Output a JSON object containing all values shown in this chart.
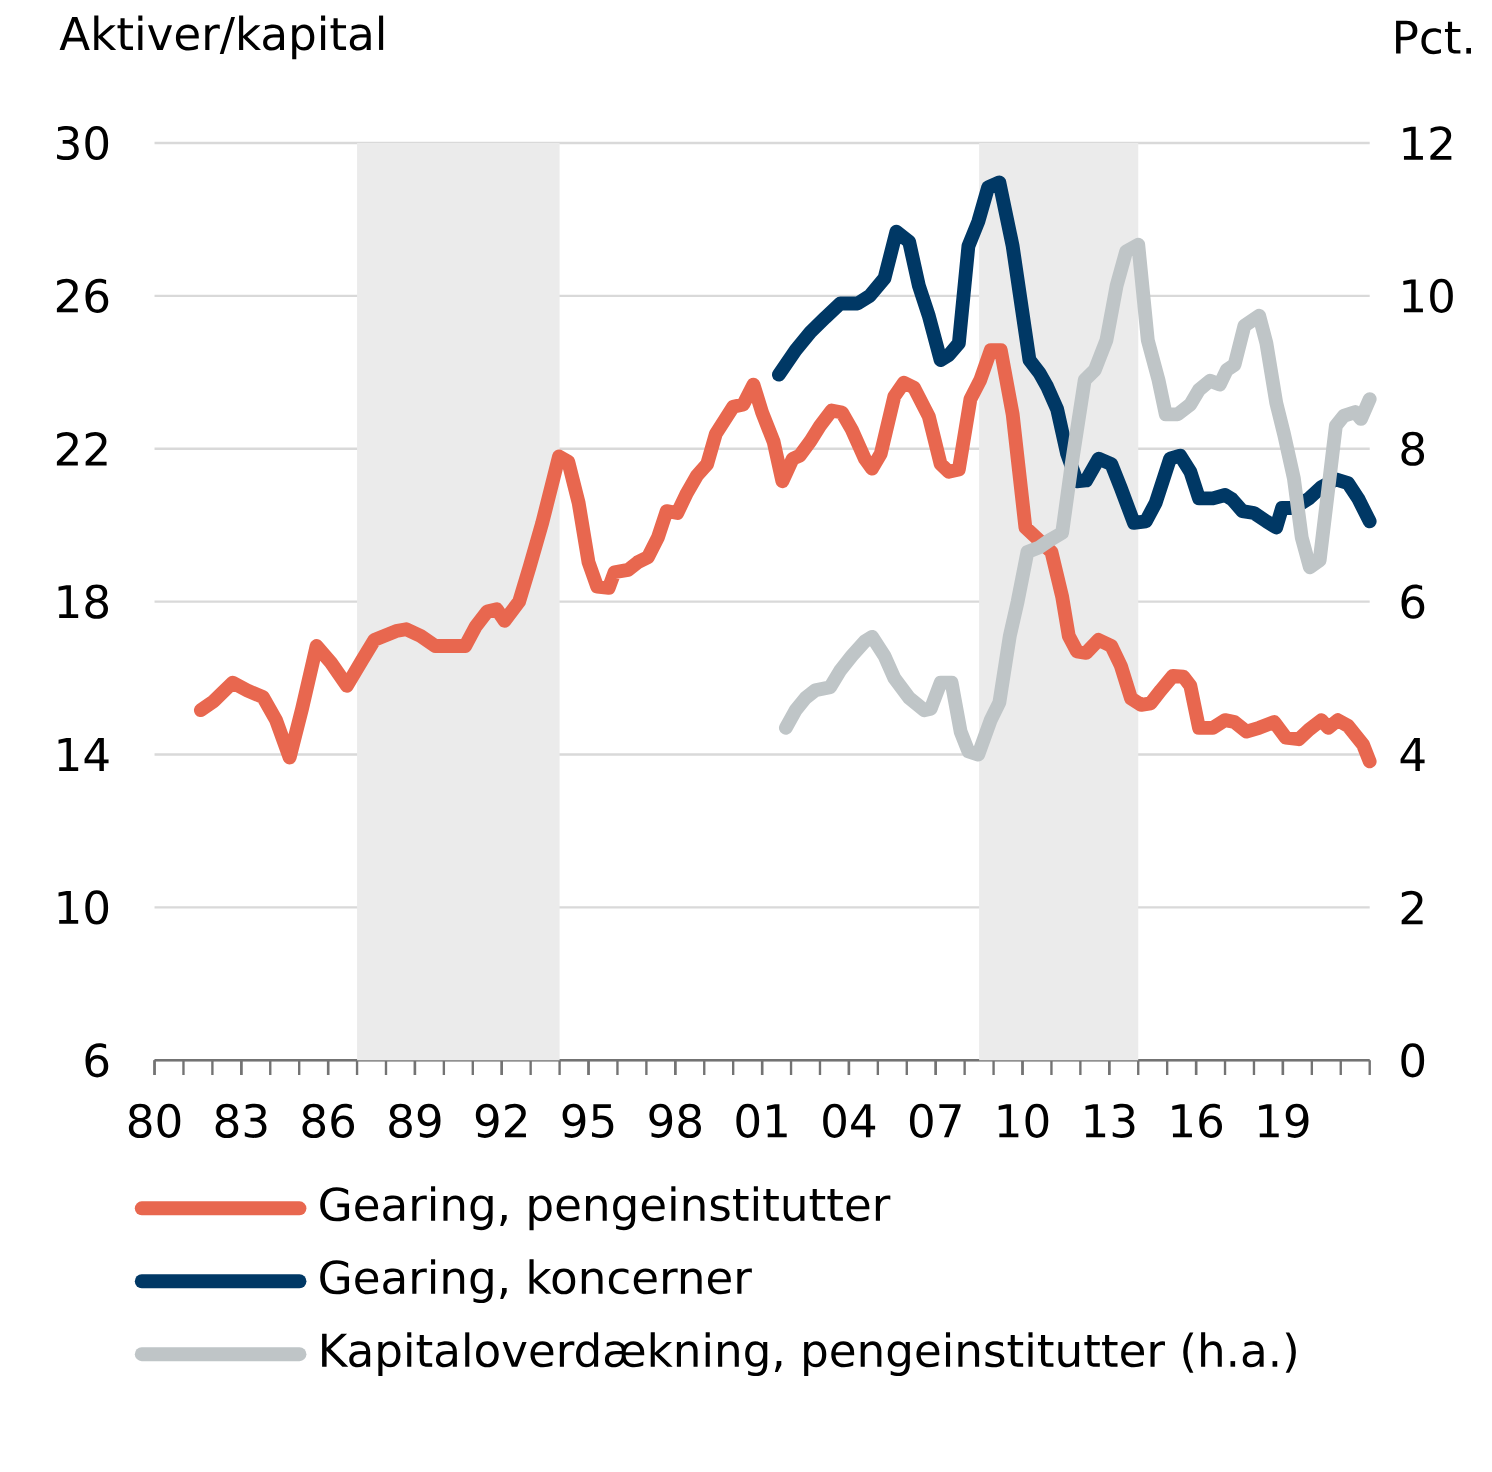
{
  "chart_data": {
    "type": "line",
    "ylabel": "Aktiver/kapital",
    "y2label": "Pct.",
    "xlim": [
      1980,
      2022
    ],
    "xticks": [
      {
        "value": 1980,
        "label": "80"
      },
      {
        "value": 1983,
        "label": "83"
      },
      {
        "value": 1986,
        "label": "86"
      },
      {
        "value": 1989,
        "label": "89"
      },
      {
        "value": 1992,
        "label": "92"
      },
      {
        "value": 1995,
        "label": "95"
      },
      {
        "value": 1998,
        "label": "98"
      },
      {
        "value": 2001,
        "label": "01"
      },
      {
        "value": 2004,
        "label": "04"
      },
      {
        "value": 2007,
        "label": "07"
      },
      {
        "value": 2010,
        "label": "10"
      },
      {
        "value": 2013,
        "label": "13"
      },
      {
        "value": 2016,
        "label": "16"
      },
      {
        "value": 2019,
        "label": "19"
      }
    ],
    "ylim": [
      6,
      30
    ],
    "yticks": [
      6,
      10,
      14,
      18,
      22,
      26,
      30
    ],
    "y2lim": [
      0,
      12
    ],
    "y2ticks": [
      0,
      2,
      4,
      6,
      8,
      10,
      12
    ],
    "grid": "y",
    "legend": "bottom",
    "marker": "none",
    "line_style": "solid",
    "bands": [
      {
        "axis": "x",
        "from": 1987,
        "to": 1994,
        "color": "#ebebeb"
      },
      {
        "axis": "x",
        "from": 2008.5,
        "to": 2014,
        "color": "#ebebeb"
      }
    ],
    "series": [
      {
        "name": "Gearing, pengeinstitutter",
        "color": "#e8674f",
        "x": [
          1981.6,
          1982.05,
          1982.7,
          1983.2,
          1983.75,
          1984.2,
          1984.67,
          1985.1,
          1985.6,
          1986.1,
          1986.65,
          1987.16,
          1987.6,
          1988.35,
          1988.7,
          1989.2,
          1989.7,
          1990.74,
          1991.1,
          1991.5,
          1991.83,
          1992.1,
          1992.6,
          1992.96,
          1993.4,
          1993.98,
          1994.3,
          1994.66,
          1995.0,
          1995.3,
          1995.7,
          1995.9,
          1996.37,
          1996.7,
          1997.05,
          1997.4,
          1997.7,
          1998.07,
          1998.4,
          1998.75,
          1999.1,
          1999.4,
          2000.0,
          2000.35,
          2000.7,
          2001.0,
          2001.4,
          2001.7,
          2002.06,
          2002.3,
          2002.67,
          2003.0,
          2003.4,
          2003.76,
          2004.1,
          2004.55,
          2004.8,
          2005.1,
          2005.57,
          2005.9,
          2006.25,
          2006.76,
          2007.17,
          2007.45,
          2007.8,
          2008.2,
          2008.54,
          2008.9,
          2009.25,
          2009.66,
          2010.1,
          2010.58,
          2011.0,
          2011.37,
          2011.6,
          2011.88,
          2012.2,
          2012.63,
          2013.07,
          2013.4,
          2013.75,
          2014.1,
          2014.43,
          2014.78,
          2015.2,
          2015.56,
          2015.8,
          2016.1,
          2016.58,
          2017.0,
          2017.33,
          2017.74,
          2018.18,
          2018.7,
          2019.1,
          2019.55,
          2019.9,
          2020.33,
          2020.57,
          2020.9,
          2021.25,
          2021.77,
          2022.0
        ],
        "values": [
          15.16,
          15.4,
          15.88,
          15.68,
          15.5,
          14.9,
          13.92,
          15.2,
          16.84,
          16.4,
          15.8,
          16.45,
          17.0,
          17.23,
          17.28,
          17.1,
          16.84,
          16.84,
          17.35,
          17.74,
          17.8,
          17.5,
          18.0,
          18.9,
          20.06,
          21.8,
          21.66,
          20.58,
          19.03,
          18.39,
          18.36,
          18.77,
          18.83,
          19.03,
          19.16,
          19.68,
          20.37,
          20.32,
          20.84,
          21.3,
          21.6,
          22.39,
          23.1,
          23.16,
          23.68,
          22.95,
          22.18,
          21.15,
          21.74,
          21.82,
          22.2,
          22.6,
          23.0,
          22.95,
          22.5,
          21.74,
          21.48,
          21.87,
          23.37,
          23.73,
          23.6,
          22.85,
          21.6,
          21.4,
          21.46,
          23.3,
          23.8,
          24.58,
          24.58,
          22.9,
          19.94,
          19.6,
          19.3,
          18.13,
          17.1,
          16.7,
          16.66,
          17.0,
          16.84,
          16.32,
          15.47,
          15.3,
          15.34,
          15.68,
          16.06,
          16.04,
          15.8,
          14.7,
          14.7,
          14.9,
          14.85,
          14.6,
          14.7,
          14.85,
          14.44,
          14.4,
          14.65,
          14.9,
          14.7,
          14.9,
          14.75,
          14.26,
          13.82
        ]
      },
      {
        "name": "Gearing, koncerner",
        "color": "#003865",
        "x": [
          2001.58,
          2002.16,
          2002.67,
          2003.18,
          2003.7,
          2004.3,
          2004.72,
          2005.23,
          2005.64,
          2006.08,
          2006.42,
          2006.76,
          2007.17,
          2007.45,
          2007.8,
          2008.13,
          2008.47,
          2008.81,
          2009.2,
          2009.66,
          2010.24,
          2010.58,
          2010.85,
          2011.2,
          2011.54,
          2011.88,
          2012.2,
          2012.63,
          2013.07,
          2013.4,
          2013.85,
          2014.26,
          2014.6,
          2015.1,
          2015.45,
          2015.8,
          2016.1,
          2016.58,
          2017.0,
          2017.24,
          2017.6,
          2018.0,
          2018.43,
          2018.77,
          2018.97,
          2019.38,
          2019.9,
          2020.33,
          2020.83,
          2021.25,
          2021.6,
          2022.0
        ],
        "values": [
          23.94,
          24.58,
          25.05,
          25.43,
          25.8,
          25.8,
          26.0,
          26.46,
          27.68,
          27.42,
          26.26,
          25.48,
          24.32,
          24.45,
          24.76,
          27.3,
          27.94,
          28.84,
          28.97,
          27.3,
          24.32,
          23.99,
          23.63,
          23.03,
          21.87,
          21.15,
          21.17,
          21.74,
          21.6,
          20.97,
          20.06,
          20.1,
          20.58,
          21.74,
          21.82,
          21.4,
          20.7,
          20.7,
          20.79,
          20.68,
          20.37,
          20.32,
          20.1,
          19.94,
          20.45,
          20.45,
          20.7,
          21.0,
          21.2,
          21.1,
          20.7,
          20.1
        ]
      },
      {
        "name": "Kapitaloverdækning, pengeinstitutter (h.a.)",
        "color": "#bfc5c7",
        "axis": "y2",
        "x": [
          2001.82,
          2002.16,
          2002.5,
          2002.84,
          2003.35,
          2003.7,
          2004.1,
          2004.55,
          2004.8,
          2005.23,
          2005.57,
          2006.08,
          2006.6,
          2006.83,
          2007.17,
          2007.55,
          2007.86,
          2008.13,
          2008.47,
          2008.9,
          2009.2,
          2009.56,
          2009.83,
          2010.17,
          2010.58,
          2010.92,
          2011.37,
          2011.7,
          2012.15,
          2012.5,
          2012.9,
          2013.25,
          2013.58,
          2014.0,
          2014.33,
          2014.7,
          2014.95,
          2015.36,
          2015.8,
          2016.1,
          2016.48,
          2016.82,
          2017.06,
          2017.33,
          2017.67,
          2018.18,
          2018.43,
          2018.77,
          2019.04,
          2019.38,
          2019.65,
          2019.93,
          2020.27,
          2020.57,
          2020.83,
          2021.1,
          2021.5,
          2021.7,
          2022.0
        ],
        "values": [
          4.35,
          4.58,
          4.74,
          4.84,
          4.88,
          5.1,
          5.29,
          5.48,
          5.54,
          5.29,
          5.0,
          4.74,
          4.58,
          4.6,
          4.94,
          4.94,
          4.3,
          4.04,
          4.0,
          4.45,
          4.68,
          5.55,
          6.0,
          6.65,
          6.71,
          6.8,
          6.9,
          7.8,
          8.9,
          9.03,
          9.42,
          10.13,
          10.58,
          10.67,
          9.42,
          8.9,
          8.45,
          8.45,
          8.58,
          8.77,
          8.89,
          8.84,
          9.03,
          9.1,
          9.61,
          9.74,
          9.38,
          8.6,
          8.19,
          7.61,
          6.84,
          6.45,
          6.54,
          7.48,
          8.3,
          8.43,
          8.48,
          8.39,
          8.65
        ]
      }
    ]
  }
}
